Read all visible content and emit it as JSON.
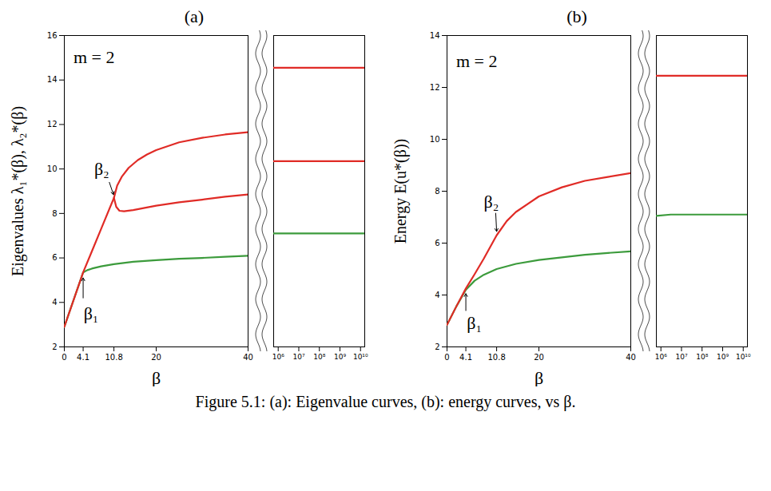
{
  "caption": "Figure 5.1: (a): Eigenvalue curves, (b): energy curves, vs β.",
  "chart_data": [
    {
      "type": "line",
      "title": "(a)",
      "ylabel": "Eigenvalues λ₁*(β), λ₂*(β)",
      "xlabel": "β",
      "ylim": [
        2,
        16
      ],
      "yticks": [
        2,
        4,
        6,
        8,
        10,
        12,
        14,
        16
      ],
      "annotations": [
        {
          "text": "m = 2",
          "x": 2,
          "y": 15
        },
        {
          "text": "β₂",
          "x": 6.5,
          "y": 10.0,
          "arrow": [
            [
              9.8,
              9.4
            ],
            [
              10.7,
              8.85
            ]
          ]
        },
        {
          "text": "β₁",
          "x": 4.2,
          "y": 3.5,
          "arrow": [
            [
              4.1,
              4.2
            ],
            [
              4.1,
              5.1
            ]
          ]
        }
      ],
      "segments": [
        {
          "xlim": [
            0,
            40
          ],
          "xticks": [
            0,
            4.1,
            10.8,
            20,
            40
          ],
          "series": [
            {
              "color": "#3c9b3c",
              "x": [
                0,
                1,
                2,
                3,
                4.1,
                5,
                6,
                8,
                10.8,
                15,
                20,
                25,
                30,
                35,
                40
              ],
              "values": [
                2.9,
                3.5,
                4.1,
                4.7,
                5.35,
                5.45,
                5.52,
                5.62,
                5.72,
                5.83,
                5.9,
                5.96,
                6.0,
                6.05,
                6.1
              ]
            },
            {
              "color": "#e02b26",
              "x": [
                0,
                4.1,
                6,
                8,
                10.8,
                11.5,
                12.5,
                14,
                16,
                18,
                20,
                25,
                30,
                35,
                40
              ],
              "values": [
                2.9,
                5.35,
                6.3,
                7.3,
                8.7,
                9.25,
                9.65,
                10.05,
                10.4,
                10.65,
                10.85,
                11.2,
                11.4,
                11.55,
                11.65
              ]
            },
            {
              "color": "#e02b26",
              "x": [
                10.8,
                11.3,
                12,
                13,
                15,
                20,
                25,
                30,
                35,
                40
              ],
              "values": [
                8.7,
                8.3,
                8.12,
                8.1,
                8.15,
                8.35,
                8.5,
                8.62,
                8.75,
                8.85
              ]
            }
          ]
        },
        {
          "log": "x",
          "xlim": [
            600000,
            16000000000
          ],
          "xticks": [
            {
              "value": 1000000,
              "label": "10⁶"
            },
            {
              "value": 10000000,
              "label": "10⁷"
            },
            {
              "value": 100000000,
              "label": "10⁸"
            },
            {
              "value": 1000000000,
              "label": "10⁹"
            },
            {
              "value": 10000000000,
              "label": "10¹⁰"
            }
          ],
          "series": [
            {
              "color": "#3c9b3c",
              "x": [
                600000,
                16000000000
              ],
              "values": [
                7.1,
                7.1
              ]
            },
            {
              "color": "#e02b26",
              "x": [
                600000,
                16000000000
              ],
              "values": [
                10.35,
                10.35
              ]
            },
            {
              "color": "#e02b26",
              "x": [
                600000,
                16000000000
              ],
              "values": [
                14.55,
                14.55
              ]
            }
          ]
        }
      ]
    },
    {
      "type": "line",
      "title": "(b)",
      "ylabel": "Energy E(u*(β))",
      "xlabel": "β",
      "ylim": [
        2,
        14
      ],
      "yticks": [
        2,
        4,
        6,
        8,
        10,
        12,
        14
      ],
      "annotations": [
        {
          "text": "m = 2",
          "x": 2,
          "y": 13
        },
        {
          "text": "β₂",
          "x": 8.0,
          "y": 7.6,
          "arrow": [
            [
              10.6,
              7.15
            ],
            [
              10.8,
              6.45
            ]
          ]
        },
        {
          "text": "β₁",
          "x": 4.3,
          "y": 2.9,
          "arrow": [
            [
              4.1,
              3.4
            ],
            [
              4.1,
              4.05
            ]
          ]
        }
      ],
      "segments": [
        {
          "xlim": [
            0,
            40
          ],
          "xticks": [
            0,
            4.1,
            10.8,
            20,
            40
          ],
          "series": [
            {
              "color": "#3c9b3c",
              "x": [
                0,
                2,
                4.1,
                6,
                8,
                10.8,
                15,
                20,
                25,
                30,
                35,
                40
              ],
              "values": [
                2.85,
                3.55,
                4.2,
                4.55,
                4.78,
                5.0,
                5.2,
                5.35,
                5.45,
                5.55,
                5.62,
                5.68
              ]
            },
            {
              "color": "#e02b26",
              "x": [
                0,
                2,
                4.1,
                6,
                8,
                10.8,
                13,
                15,
                20,
                25,
                30,
                35,
                40
              ],
              "values": [
                2.85,
                3.55,
                4.25,
                4.8,
                5.4,
                6.3,
                6.85,
                7.2,
                7.8,
                8.15,
                8.4,
                8.55,
                8.7
              ]
            }
          ]
        },
        {
          "log": "x",
          "xlim": [
            600000,
            16000000000
          ],
          "xticks": [
            {
              "value": 1000000,
              "label": "10⁶"
            },
            {
              "value": 10000000,
              "label": "10⁷"
            },
            {
              "value": 100000000,
              "label": "10⁸"
            },
            {
              "value": 1000000000,
              "label": "10⁹"
            },
            {
              "value": 10000000000,
              "label": "10¹⁰"
            }
          ],
          "series": [
            {
              "color": "#3c9b3c",
              "x": [
                600000,
                3000000,
                16000000000
              ],
              "values": [
                7.05,
                7.1,
                7.1
              ]
            },
            {
              "color": "#e02b26",
              "x": [
                600000,
                16000000000
              ],
              "values": [
                12.45,
                12.45
              ]
            }
          ]
        }
      ]
    }
  ]
}
